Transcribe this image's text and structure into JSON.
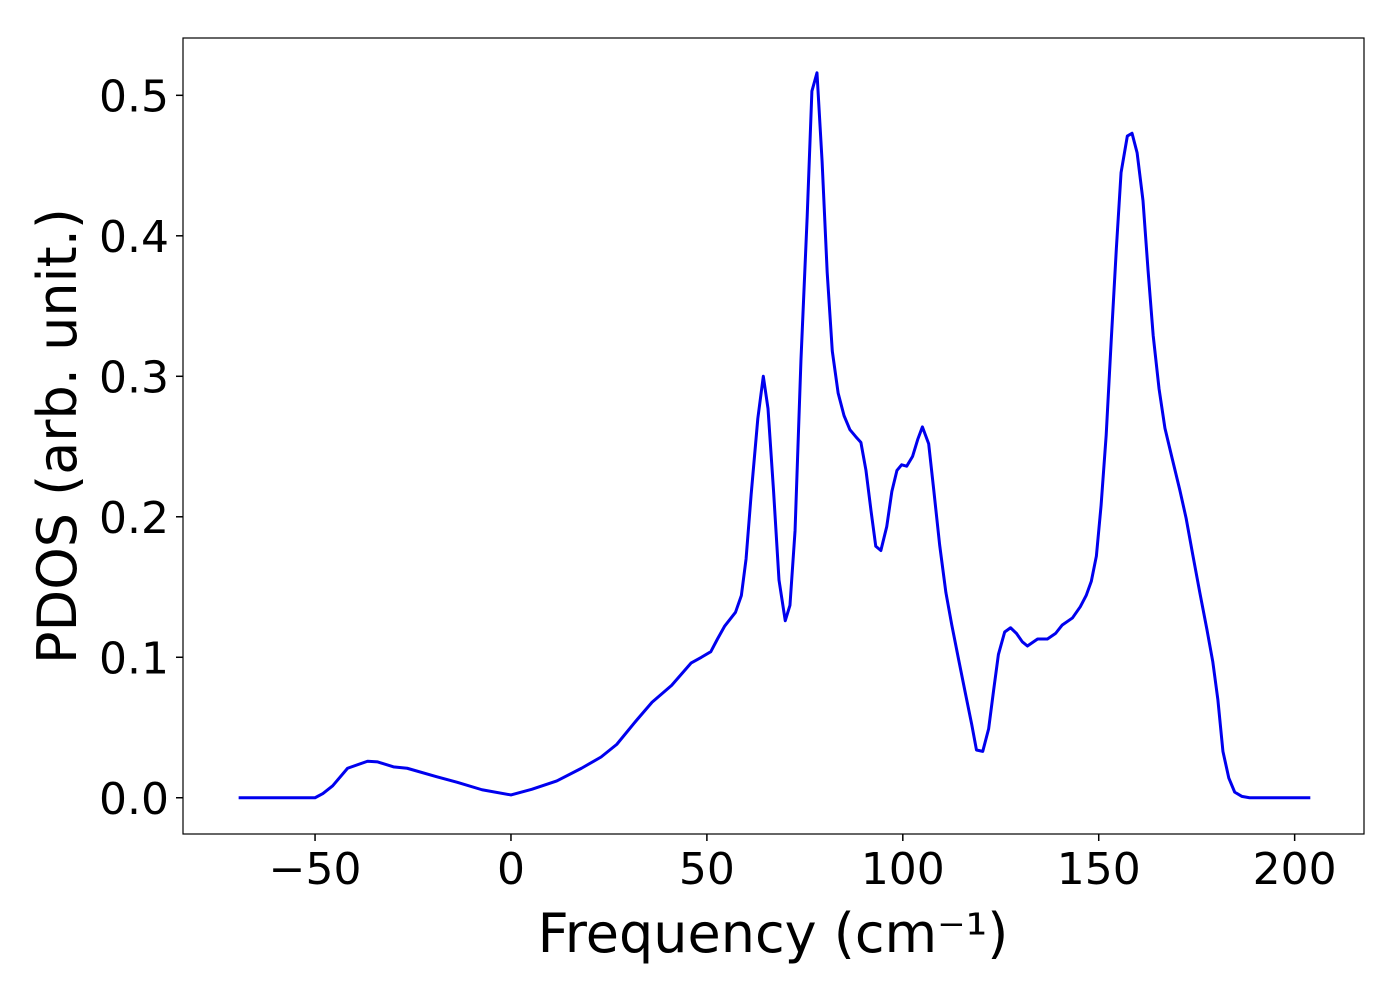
{
  "chart_data": {
    "type": "line",
    "xlabel": "Frequency (cm⁻¹)",
    "ylabel": "PDOS (arb. unit.)",
    "color": "#0000ee",
    "xlim": [
      -83.7,
      217.7
    ],
    "ylim": [
      -0.0258,
      0.5408
    ],
    "xticks": [
      {
        "value": -50,
        "label": "−50"
      },
      0,
      50,
      100,
      150,
      200
    ],
    "yticks": [
      {
        "value": 0,
        "label": "0.0"
      },
      0.1,
      0.2,
      0.3,
      0.4,
      0.5
    ],
    "grid": false,
    "x": [
      -69.5,
      -50,
      -48,
      -45.5,
      -41.7,
      -36.6,
      -34,
      -30,
      -26.5,
      -19,
      -13.7,
      -7.4,
      0,
      5.3,
      11.7,
      18,
      23,
      27,
      32,
      36,
      41,
      46,
      48.6,
      51,
      52.7,
      54.5,
      57.3,
      58.8,
      60,
      61.3,
      63,
      64.4,
      65.6,
      67,
      68.4,
      70,
      71.2,
      72.5,
      74,
      75.6,
      76.8,
      78.1,
      79.4,
      80.7,
      82,
      83.5,
      85,
      86.5,
      88,
      89.3,
      90.6,
      91.9,
      93.1,
      94.4,
      95.9,
      97.2,
      98.5,
      99.7,
      101,
      102.5,
      103.8,
      105,
      106.6,
      107.9,
      109.4,
      111,
      112.5,
      114.2,
      116,
      117.6,
      118.8,
      120.4,
      121.9,
      123.2,
      124.4,
      126,
      127.5,
      129,
      130.5,
      131.8,
      134.4,
      136.9,
      139,
      140.7,
      143.3,
      145.3,
      146.8,
      148.1,
      149.4,
      150.6,
      151.9,
      153.2,
      154.5,
      155.7,
      157.3,
      158.5,
      159.8,
      161.3,
      162.6,
      163.9,
      165.4,
      166.9,
      168.7,
      170.7,
      172.3,
      174,
      175.8,
      177.6,
      179.1,
      180.4,
      181.7,
      183.2,
      184.7,
      186.5,
      188.5,
      204
    ],
    "values": [
      0,
      0,
      0.003,
      0.0085,
      0.021,
      0.026,
      0.0255,
      0.022,
      0.021,
      0.015,
      0.011,
      0.0057,
      0.002,
      0.006,
      0.012,
      0.021,
      0.029,
      0.038,
      0.055,
      0.068,
      0.08,
      0.096,
      0.1,
      0.104,
      0.113,
      0.122,
      0.132,
      0.144,
      0.17,
      0.216,
      0.27,
      0.3,
      0.277,
      0.219,
      0.155,
      0.126,
      0.137,
      0.19,
      0.311,
      0.414,
      0.503,
      0.516,
      0.453,
      0.374,
      0.318,
      0.288,
      0.272,
      0.262,
      0.257,
      0.253,
      0.233,
      0.204,
      0.179,
      0.176,
      0.193,
      0.218,
      0.233,
      0.237,
      0.236,
      0.243,
      0.255,
      0.264,
      0.252,
      0.219,
      0.18,
      0.146,
      0.123,
      0.099,
      0.074,
      0.052,
      0.034,
      0.033,
      0.049,
      0.077,
      0.102,
      0.118,
      0.121,
      0.117,
      0.111,
      0.108,
      0.113,
      0.113,
      0.117,
      0.123,
      0.128,
      0.136,
      0.144,
      0.154,
      0.172,
      0.208,
      0.258,
      0.326,
      0.391,
      0.445,
      0.471,
      0.473,
      0.459,
      0.425,
      0.375,
      0.329,
      0.291,
      0.263,
      0.242,
      0.219,
      0.199,
      0.173,
      0.146,
      0.12,
      0.097,
      0.07,
      0.033,
      0.014,
      0.004,
      0.001,
      0,
      0
    ]
  }
}
